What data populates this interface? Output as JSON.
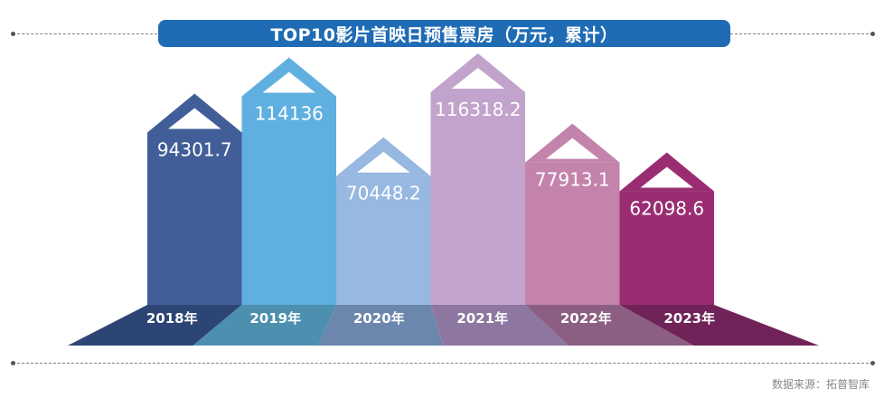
{
  "chart_data": {
    "type": "bar",
    "title": "TOP10影片首映日预售票房（万元，累计）",
    "categories": [
      "2018年",
      "2019年",
      "2020年",
      "2021年",
      "2022年",
      "2023年"
    ],
    "values": [
      94301.7,
      114136,
      70448.2,
      116318.2,
      77913.1,
      62098.6
    ],
    "value_labels": [
      "94301.7",
      "114136",
      "70448.2",
      "116318.2",
      "77913.1",
      "62098.6"
    ],
    "colors": [
      "#415e98",
      "#5fb0e0",
      "#97b8e0",
      "#c2a3cc",
      "#c383ab",
      "#9a2d72"
    ],
    "base_colors": [
      "#2d4575",
      "#4c8fae",
      "#6b87ae",
      "#8d77a0",
      "#8c5f82",
      "#6f2358"
    ],
    "ylim": [
      0,
      120000
    ]
  },
  "source_text": "数据来源：拓普智库"
}
